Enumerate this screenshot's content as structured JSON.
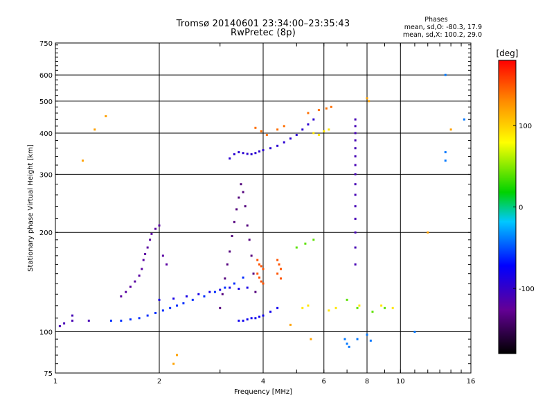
{
  "title": {
    "line1": "Tromsø 20140601 23:34:00–23:35:43",
    "line2": "RwPretec (8p)"
  },
  "phases_box": {
    "heading": "Phases",
    "line_o": "mean, sd,O: -80.3, 17.9",
    "line_x": "mean, sd,X: 100.2, 29.0"
  },
  "chart_data": {
    "type": "scatter",
    "xlabel": "Frequency [MHz]",
    "ylabel": "Stationary phase Virtual Height [km]",
    "xscale": "log",
    "yscale": "log",
    "xlim": [
      1,
      16
    ],
    "ylim": [
      75,
      750
    ],
    "xticks": [
      1,
      2,
      4,
      6,
      8,
      10,
      16
    ],
    "yticks": [
      75,
      100,
      200,
      300,
      400,
      500,
      600,
      750
    ],
    "grid": true,
    "colorbar": {
      "label": "[deg]",
      "range": [
        -180,
        180
      ],
      "ticks": [
        100,
        0,
        -100
      ]
    },
    "series": [
      {
        "color_deg": -110,
        "points": [
          [
            1.03,
            104
          ],
          [
            1.06,
            106
          ],
          [
            1.12,
            108
          ],
          [
            1.12,
            112
          ],
          [
            1.25,
            108
          ]
        ]
      },
      {
        "color_deg": -120,
        "points": [
          [
            1.55,
            128
          ],
          [
            1.6,
            132
          ],
          [
            1.65,
            137
          ],
          [
            1.7,
            142
          ],
          [
            1.75,
            148
          ],
          [
            1.78,
            155
          ],
          [
            1.8,
            165
          ],
          [
            1.82,
            172
          ],
          [
            1.85,
            180
          ],
          [
            1.88,
            190
          ],
          [
            1.9,
            198
          ],
          [
            1.95,
            205
          ],
          [
            2.0,
            210
          ],
          [
            2.05,
            170
          ],
          [
            2.1,
            160
          ]
        ]
      },
      {
        "color_deg": -60,
        "points": [
          [
            1.45,
            108
          ],
          [
            1.55,
            108
          ],
          [
            1.65,
            109
          ],
          [
            1.75,
            110
          ],
          [
            1.85,
            112
          ],
          [
            1.95,
            114
          ],
          [
            2.05,
            116
          ],
          [
            2.15,
            118
          ],
          [
            2.25,
            120
          ],
          [
            2.35,
            122
          ],
          [
            2.5,
            125
          ],
          [
            2.7,
            128
          ],
          [
            2.9,
            132
          ],
          [
            3.1,
            136
          ],
          [
            3.3,
            140
          ],
          [
            3.5,
            146
          ]
        ]
      },
      {
        "color_deg": -85,
        "points": [
          [
            2.0,
            125
          ],
          [
            2.2,
            126
          ],
          [
            2.4,
            128
          ],
          [
            2.6,
            130
          ],
          [
            2.8,
            132
          ],
          [
            3.0,
            134
          ],
          [
            3.2,
            136
          ],
          [
            3.4,
            135
          ],
          [
            3.6,
            136
          ]
        ]
      },
      {
        "color_deg": -135,
        "points": [
          [
            3.0,
            118
          ],
          [
            3.05,
            130
          ],
          [
            3.1,
            145
          ],
          [
            3.15,
            160
          ],
          [
            3.2,
            175
          ],
          [
            3.25,
            195
          ],
          [
            3.3,
            215
          ],
          [
            3.35,
            235
          ],
          [
            3.4,
            255
          ],
          [
            3.45,
            280
          ],
          [
            3.5,
            265
          ],
          [
            3.55,
            240
          ],
          [
            3.6,
            210
          ],
          [
            3.65,
            190
          ],
          [
            3.7,
            170
          ],
          [
            3.75,
            150
          ],
          [
            3.8,
            132
          ]
        ]
      },
      {
        "color_deg": -80,
        "points": [
          [
            3.4,
            108
          ],
          [
            3.5,
            108
          ],
          [
            3.6,
            109
          ],
          [
            3.7,
            110
          ],
          [
            3.8,
            110
          ],
          [
            3.9,
            111
          ],
          [
            4.0,
            112
          ],
          [
            4.2,
            115
          ],
          [
            4.4,
            118
          ]
        ]
      },
      {
        "color_deg": -95,
        "points": [
          [
            3.2,
            335
          ],
          [
            3.3,
            345
          ],
          [
            3.4,
            350
          ],
          [
            3.5,
            348
          ],
          [
            3.6,
            346
          ],
          [
            3.7,
            345
          ],
          [
            3.8,
            348
          ],
          [
            3.9,
            352
          ],
          [
            4.0,
            355
          ],
          [
            4.2,
            360
          ],
          [
            4.4,
            366
          ],
          [
            4.6,
            375
          ],
          [
            4.8,
            385
          ],
          [
            5.0,
            395
          ],
          [
            5.2,
            410
          ],
          [
            5.4,
            425
          ],
          [
            5.6,
            440
          ]
        ]
      },
      {
        "color_deg": 140,
        "points": [
          [
            3.8,
            415
          ],
          [
            3.95,
            405
          ],
          [
            4.1,
            395
          ],
          [
            4.4,
            410
          ],
          [
            4.6,
            420
          ],
          [
            5.4,
            460
          ],
          [
            5.8,
            470
          ],
          [
            6.1,
            475
          ],
          [
            6.3,
            480
          ]
        ]
      },
      {
        "color_deg": 150,
        "points": [
          [
            3.85,
            165
          ],
          [
            3.9,
            160
          ],
          [
            3.95,
            158
          ],
          [
            4.0,
            155
          ],
          [
            3.85,
            150
          ],
          [
            3.9,
            146
          ],
          [
            3.95,
            142
          ],
          [
            4.0,
            140
          ],
          [
            4.4,
            165
          ],
          [
            4.45,
            160
          ],
          [
            4.5,
            155
          ],
          [
            4.4,
            150
          ],
          [
            4.5,
            145
          ]
        ]
      },
      {
        "color_deg": 90,
        "points": [
          [
            5.6,
            400
          ],
          [
            5.8,
            395
          ],
          [
            6.0,
            405
          ],
          [
            6.2,
            410
          ],
          [
            5.2,
            118
          ],
          [
            5.4,
            120
          ],
          [
            6.2,
            116
          ],
          [
            6.5,
            118
          ],
          [
            7.6,
            120
          ],
          [
            8.8,
            120
          ],
          [
            9.5,
            118
          ]
        ]
      },
      {
        "color_deg": 40,
        "points": [
          [
            5.0,
            180
          ],
          [
            5.3,
            185
          ],
          [
            5.6,
            190
          ],
          [
            7.0,
            125
          ],
          [
            7.5,
            118
          ],
          [
            8.3,
            115
          ],
          [
            9.0,
            118
          ]
        ]
      },
      {
        "color_deg": -110,
        "points": [
          [
            7.4,
            440
          ],
          [
            7.4,
            420
          ],
          [
            7.4,
            400
          ],
          [
            7.4,
            380
          ],
          [
            7.4,
            360
          ],
          [
            7.4,
            340
          ],
          [
            7.4,
            320
          ],
          [
            7.4,
            300
          ],
          [
            7.4,
            280
          ],
          [
            7.4,
            260
          ],
          [
            7.4,
            240
          ],
          [
            7.4,
            220
          ],
          [
            7.4,
            200
          ],
          [
            7.4,
            180
          ],
          [
            7.4,
            160
          ]
        ]
      },
      {
        "color_deg": -40,
        "points": [
          [
            6.9,
            95
          ],
          [
            7.0,
            92
          ],
          [
            7.1,
            90
          ],
          [
            7.5,
            95
          ],
          [
            8.0,
            98
          ],
          [
            8.2,
            94
          ],
          [
            11.0,
            100
          ],
          [
            13.5,
            600
          ],
          [
            13.5,
            330
          ],
          [
            13.5,
            350
          ],
          [
            15.3,
            440
          ]
        ]
      },
      {
        "color_deg": 120,
        "points": [
          [
            1.4,
            450
          ],
          [
            1.3,
            410
          ],
          [
            1.2,
            330
          ],
          [
            2.2,
            80
          ],
          [
            2.25,
            85
          ],
          [
            4.8,
            105
          ],
          [
            5.5,
            95
          ],
          [
            8.0,
            510
          ],
          [
            8.1,
            500
          ],
          [
            12.0,
            200
          ],
          [
            14.0,
            410
          ]
        ]
      }
    ]
  }
}
